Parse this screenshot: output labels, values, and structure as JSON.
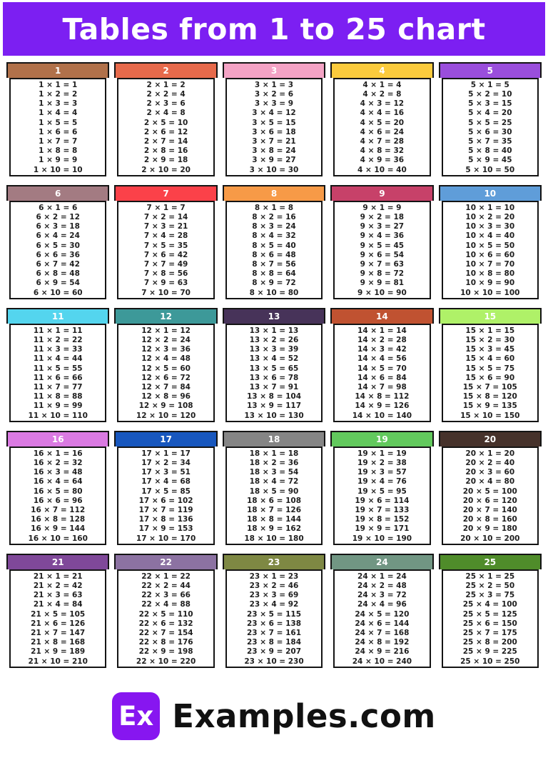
{
  "title": "Tables from 1 to 25 chart",
  "theme": {
    "banner_color": "#7C1FF2",
    "card_border_color": "#141414",
    "fact_text_color": "#1f1f1f",
    "logo_color": "#8716F0"
  },
  "footer": {
    "logo_text": "Ex",
    "brand": "Examples.com"
  },
  "tables": [
    {
      "number": "1",
      "color": "#B1714A",
      "rows": [
        "1 × 1 = 1",
        "1 × 2 = 2",
        "1 × 3 = 3",
        "1 × 4 = 4",
        "1 × 5 = 5",
        "1 × 6 = 6",
        "1 × 7 = 7",
        "1 × 8 = 8",
        "1 × 9 = 9",
        "1 × 10 = 10"
      ]
    },
    {
      "number": "2",
      "color": "#E76A4B",
      "rows": [
        "2 × 1 = 2",
        "2 × 2 = 4",
        "2 × 3 = 6",
        "2 × 4 = 8",
        "2 × 5 = 10",
        "2 × 6 = 12",
        "2 × 7 = 14",
        "2 × 8 = 16",
        "2 × 9 = 18",
        "2 × 10 = 20"
      ]
    },
    {
      "number": "3",
      "color": "#F4A3C5",
      "rows": [
        "3 × 1 = 3",
        "3 × 2 = 6",
        "3 × 3 = 9",
        "3 × 4 = 12",
        "3 × 5 = 15",
        "3 × 6 = 18",
        "3 × 7 = 21",
        "3 × 8 = 24",
        "3 × 9 = 27",
        "3 × 10 = 30"
      ]
    },
    {
      "number": "4",
      "color": "#FBCB3D",
      "rows": [
        "4 × 1 = 4",
        "4 × 2 = 8",
        "4 × 3 = 12",
        "4 × 4 = 16",
        "4 × 5 = 20",
        "4 × 6 = 24",
        "4 × 7 = 28",
        "4 × 8 = 32",
        "4 × 9 = 36",
        "4 × 10 = 40"
      ]
    },
    {
      "number": "5",
      "color": "#9A4EDC",
      "rows": [
        "5 × 1 = 5",
        "5 × 2 = 10",
        "5 × 3 = 15",
        "5 × 4 = 20",
        "5 × 5 = 25",
        "5 × 6 = 30",
        "5 × 7 = 35",
        "5 × 8 = 40",
        "5 × 9 = 45",
        "5 × 10 = 50"
      ]
    },
    {
      "number": "6",
      "color": "#A37B82",
      "rows": [
        "6 × 1 = 6",
        "6 × 2 = 12",
        "6 × 3 = 18",
        "6 × 4 = 24",
        "6 × 5 = 30",
        "6 × 6 = 36",
        "6 × 7 = 42",
        "6 × 8 = 48",
        "6 × 9 = 54",
        "6 × 10 = 60"
      ]
    },
    {
      "number": "7",
      "color": "#FB4149",
      "rows": [
        "7 × 1 = 7",
        "7 × 2 = 14",
        "7 × 3 = 21",
        "7 × 4 = 28",
        "7 × 5 = 35",
        "7 × 6 = 42",
        "7 × 7 = 49",
        "7 × 8 = 56",
        "7 × 9 = 63",
        "7 × 10 = 70"
      ]
    },
    {
      "number": "8",
      "color": "#F79A47",
      "rows": [
        "8 × 1 = 8",
        "8 × 2 = 16",
        "8 × 3 = 24",
        "8 × 4 = 32",
        "8 × 5 = 40",
        "8 × 6 = 48",
        "8 × 7 = 56",
        "8 × 8 = 64",
        "8 × 9 = 72",
        "8 × 10 = 80"
      ]
    },
    {
      "number": "9",
      "color": "#C74169",
      "rows": [
        "9 × 1 = 9",
        "9 × 2 = 18",
        "9 × 3 = 27",
        "9 × 4 = 36",
        "9 × 5 = 45",
        "9 × 6 = 54",
        "9 × 7 = 63",
        "9 × 8 = 72",
        "9 × 9 = 81",
        "9 × 10 = 90"
      ]
    },
    {
      "number": "10",
      "color": "#5F9DD9",
      "rows": [
        "10 × 1 = 10",
        "10 × 2 = 20",
        "10 × 3 = 30",
        "10 × 4 = 40",
        "10 × 5 = 50",
        "10 × 6 = 60",
        "10 × 7 = 70",
        "10 × 8 = 80",
        "10 × 9 = 90",
        "10 × 10 = 100"
      ]
    },
    {
      "number": "11",
      "color": "#54D5EE",
      "rows": [
        "11 × 1 = 11",
        "11 × 2 = 22",
        "11 × 3 = 33",
        "11 × 4 = 44",
        "11 × 5 = 55",
        "11 × 6 = 66",
        "11 × 7 = 77",
        "11 × 8 = 88",
        "11 × 9 = 99",
        "11 × 10 = 110"
      ]
    },
    {
      "number": "12",
      "color": "#3D9999",
      "rows": [
        "12 × 1 = 12",
        "12 × 2 = 24",
        "12 × 3 = 36",
        "12 × 4 = 48",
        "12 × 5 = 60",
        "12 × 6 = 72",
        "12 × 7 = 84",
        "12 × 8 = 96",
        "12 × 9 = 108",
        "12 × 10 = 120"
      ]
    },
    {
      "number": "13",
      "color": "#473359",
      "rows": [
        "13 × 1 = 13",
        "13 × 2 = 26",
        "13 × 3 = 39",
        "13 × 4 = 52",
        "13 × 5 = 65",
        "13 × 6 = 78",
        "13 × 7 = 91",
        "13 × 8 = 104",
        "13 × 9 = 117",
        "13 × 10 = 130"
      ]
    },
    {
      "number": "14",
      "color": "#C05231",
      "rows": [
        "14 × 1 = 14",
        "14 × 2 = 28",
        "14 × 3 = 42",
        "14 × 4 = 56",
        "14 × 5 = 70",
        "14 × 6 = 84",
        "14 × 7 = 98",
        "14 × 8 = 112",
        "14 × 9 = 126",
        "14 × 10 = 140"
      ]
    },
    {
      "number": "15",
      "color": "#AFF168",
      "rows": [
        "15 × 1 = 15",
        "15 × 2 = 30",
        "15 × 3 = 45",
        "15 × 4 = 60",
        "15 × 5 = 75",
        "15 × 6 = 90",
        "15 × 7 = 105",
        "15 × 8 = 120",
        "15 × 9 = 135",
        "15 × 10 = 150"
      ]
    },
    {
      "number": "16",
      "color": "#DA7AE2",
      "rows": [
        "16 × 1 = 16",
        "16 × 2 = 32",
        "16 × 3 = 48",
        "16 × 4 = 64",
        "16 × 5 = 80",
        "16 × 6 = 96",
        "16 × 7 = 112",
        "16 × 8 = 128",
        "16 × 9 = 144",
        "16 × 10 = 160"
      ]
    },
    {
      "number": "17",
      "color": "#1857BE",
      "rows": [
        "17 × 1 = 17",
        "17 × 2 = 34",
        "17 × 3 = 51",
        "17 × 4 = 68",
        "17 × 5 = 85",
        "17 × 6 = 102",
        "17 × 7 = 119",
        "17 × 8 = 136",
        "17 × 9 = 153",
        "17 × 10 = 170"
      ]
    },
    {
      "number": "18",
      "color": "#858585",
      "rows": [
        "18 × 1 = 18",
        "18 × 2 = 36",
        "18 × 3 = 54",
        "18 × 4 = 72",
        "18 × 5 = 90",
        "18 × 6 = 108",
        "18 × 7 = 126",
        "18 × 8 = 144",
        "18 × 9 = 162",
        "18 × 10 = 180"
      ]
    },
    {
      "number": "19",
      "color": "#62C95D",
      "rows": [
        "19 × 1 = 19",
        "19 × 2 = 38",
        "19 × 3 = 57",
        "19 × 4 = 76",
        "19 × 5 = 95",
        "19 × 6 = 114",
        "19 × 7 = 133",
        "19 × 8 = 152",
        "19 × 9 = 171",
        "19 × 10 = 190"
      ]
    },
    {
      "number": "20",
      "color": "#46322B",
      "rows": [
        "20 × 1 = 20",
        "20 × 2 = 40",
        "20 × 3 = 60",
        "20 × 4 = 80",
        "20 × 5 = 100",
        "20 × 6 = 120",
        "20 × 7 = 140",
        "20 × 8 = 160",
        "20 × 9 = 180",
        "20 × 10 = 200"
      ]
    },
    {
      "number": "21",
      "color": "#7F4899",
      "rows": [
        "21 × 1 = 21",
        "21 × 2 = 42",
        "21 × 3 = 63",
        "21 × 4 = 84",
        "21 × 5 = 105",
        "21 × 6 = 126",
        "21 × 7 = 147",
        "21 × 8 = 168",
        "21 × 9 = 189",
        "21 × 10 = 210"
      ]
    },
    {
      "number": "22",
      "color": "#8C72A2",
      "rows": [
        "22 × 1 = 22",
        "22 × 2 = 44",
        "22 × 3 = 66",
        "22 × 4 = 88",
        "22 × 5 = 110",
        "22 × 6 = 132",
        "22 × 7 = 154",
        "22 × 8 = 176",
        "22 × 9 = 198",
        "22 × 10 = 220"
      ]
    },
    {
      "number": "23",
      "color": "#7E8843",
      "rows": [
        "23 × 1 = 23",
        "23 × 2 = 46",
        "23 × 3 = 69",
        "23 × 4 = 92",
        "23 × 5 = 115",
        "23 × 6 = 138",
        "23 × 7 = 161",
        "23 × 8 = 184",
        "23 × 9 = 207",
        "23 × 10 = 230"
      ]
    },
    {
      "number": "24",
      "color": "#719683",
      "rows": [
        "24 × 1 = 24",
        "24 × 2 = 48",
        "24 × 3 = 72",
        "24 × 4 = 96",
        "24 × 5 = 120",
        "24 × 6 = 144",
        "24 × 7 = 168",
        "24 × 8 = 192",
        "24 × 9 = 216",
        "24 × 10 = 240"
      ]
    },
    {
      "number": "25",
      "color": "#4F8C2A",
      "rows": [
        "25 × 1 = 25",
        "25 × 2 = 50",
        "25 × 3 = 75",
        "25 × 4 = 100",
        "25 × 5 = 125",
        "25 × 6 = 150",
        "25 × 7 = 175",
        "25 × 8 = 200",
        "25 × 9 = 225",
        "25 × 10 = 250"
      ]
    }
  ]
}
